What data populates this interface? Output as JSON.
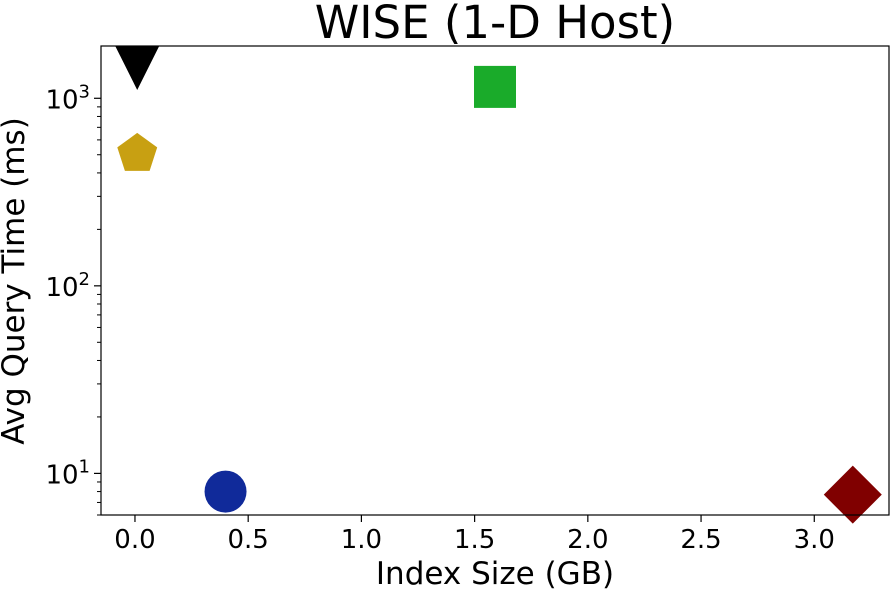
{
  "chart_data": {
    "type": "scatter",
    "title": "WISE (1-D Host)",
    "xlabel": "Index Size (GB)",
    "ylabel": "Avg Query Time (ms)",
    "xlim": [
      -0.15,
      3.33
    ],
    "ylim": [
      6,
      1900
    ],
    "yscale": "log",
    "grid": false,
    "x_ticks": [
      "0.0",
      "0.5",
      "1.0",
      "1.5",
      "2.0",
      "2.5",
      "3.0"
    ],
    "x_tick_values": [
      0.0,
      0.5,
      1.0,
      1.5,
      2.0,
      2.5,
      3.0
    ],
    "y_ticks": [
      {
        "value": 10,
        "base": "10",
        "exp": "1"
      },
      {
        "value": 100,
        "base": "10",
        "exp": "2"
      },
      {
        "value": 1000,
        "base": "10",
        "exp": "3"
      }
    ],
    "points": [
      {
        "x": 0.01,
        "y": 1450,
        "marker": "triangle-down",
        "color": "#000000"
      },
      {
        "x": 0.01,
        "y": 505,
        "marker": "pentagon",
        "color": "#c8a012"
      },
      {
        "x": 1.59,
        "y": 1150,
        "marker": "square",
        "color": "#1aab2a"
      },
      {
        "x": 0.4,
        "y": 8.0,
        "marker": "circle",
        "color": "#102a9a"
      },
      {
        "x": 3.17,
        "y": 7.7,
        "marker": "diamond",
        "color": "#800000"
      }
    ]
  }
}
